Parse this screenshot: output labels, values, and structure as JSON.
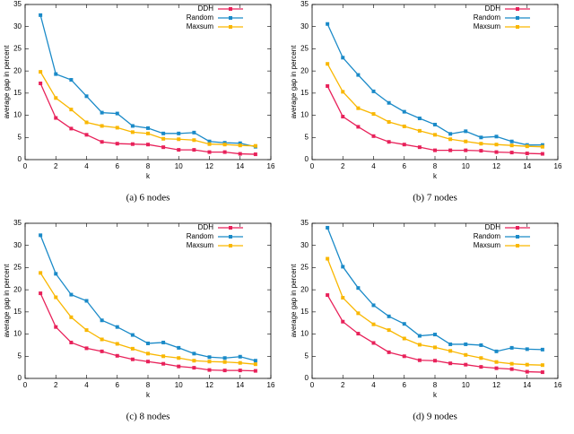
{
  "chart_data": [
    {
      "type": "line",
      "caption": "(a) 6 nodes",
      "xlabel": "k",
      "ylabel": "average gap in percent",
      "x": [
        1,
        2,
        3,
        4,
        5,
        6,
        7,
        8,
        9,
        10,
        11,
        12,
        13,
        14,
        15
      ],
      "xlim": [
        0,
        16
      ],
      "xticks": [
        0,
        2,
        4,
        6,
        8,
        10,
        12,
        14,
        16
      ],
      "ylim": [
        0,
        35
      ],
      "yticks": [
        0,
        5,
        10,
        15,
        20,
        25,
        30,
        35
      ],
      "legend": "upper right",
      "series": [
        {
          "name": "DDH",
          "color": "#e8215a",
          "values": [
            17.2,
            9.4,
            7.0,
            5.6,
            4.0,
            3.6,
            3.5,
            3.4,
            2.8,
            2.2,
            2.2,
            1.7,
            1.7,
            1.3,
            1.2
          ]
        },
        {
          "name": "Random",
          "color": "#1a8ac8",
          "values": [
            32.6,
            19.3,
            18.0,
            14.3,
            10.6,
            10.4,
            7.6,
            7.1,
            5.9,
            5.9,
            6.1,
            4.1,
            3.8,
            3.7,
            2.9
          ]
        },
        {
          "name": "Maxsum",
          "color": "#f9b700",
          "values": [
            19.8,
            13.9,
            11.3,
            8.4,
            7.6,
            7.2,
            6.2,
            5.9,
            4.7,
            4.6,
            4.4,
            3.5,
            3.4,
            3.2,
            3.1
          ]
        }
      ]
    },
    {
      "type": "line",
      "caption": "(b) 7 nodes",
      "xlabel": "k",
      "ylabel": "average gap in percent",
      "x": [
        1,
        2,
        3,
        4,
        5,
        6,
        7,
        8,
        9,
        10,
        11,
        12,
        13,
        14,
        15
      ],
      "xlim": [
        0,
        16
      ],
      "xticks": [
        0,
        2,
        4,
        6,
        8,
        10,
        12,
        14,
        16
      ],
      "ylim": [
        0,
        35
      ],
      "yticks": [
        0,
        5,
        10,
        15,
        20,
        25,
        30,
        35
      ],
      "legend": "upper right",
      "series": [
        {
          "name": "DDH",
          "color": "#e8215a",
          "values": [
            16.6,
            9.7,
            7.4,
            5.3,
            4.0,
            3.4,
            2.8,
            2.1,
            2.1,
            2.1,
            2.0,
            1.7,
            1.6,
            1.4,
            1.3
          ]
        },
        {
          "name": "Random",
          "color": "#1a8ac8",
          "values": [
            30.6,
            23.0,
            19.1,
            15.4,
            12.8,
            10.8,
            9.3,
            7.9,
            5.8,
            6.4,
            5.0,
            5.2,
            4.1,
            3.3,
            3.3
          ]
        },
        {
          "name": "Maxsum",
          "color": "#f9b700",
          "values": [
            21.6,
            15.3,
            11.6,
            10.3,
            8.5,
            7.5,
            6.5,
            5.6,
            4.6,
            4.1,
            3.6,
            3.4,
            3.2,
            3.0,
            2.9
          ]
        }
      ]
    },
    {
      "type": "line",
      "caption": "(c) 8 nodes",
      "xlabel": "k",
      "ylabel": "average gap in percent",
      "x": [
        1,
        2,
        3,
        4,
        5,
        6,
        7,
        8,
        9,
        10,
        11,
        12,
        13,
        14,
        15
      ],
      "xlim": [
        0,
        16
      ],
      "xticks": [
        0,
        2,
        4,
        6,
        8,
        10,
        12,
        14,
        16
      ],
      "ylim": [
        0,
        35
      ],
      "yticks": [
        0,
        5,
        10,
        15,
        20,
        25,
        30,
        35
      ],
      "legend": "upper right",
      "series": [
        {
          "name": "DDH",
          "color": "#e8215a",
          "values": [
            19.2,
            11.6,
            8.1,
            6.8,
            6.1,
            5.1,
            4.3,
            3.8,
            3.3,
            2.7,
            2.4,
            1.9,
            1.8,
            1.8,
            1.7
          ]
        },
        {
          "name": "Random",
          "color": "#1a8ac8",
          "values": [
            32.3,
            23.6,
            18.9,
            17.5,
            13.1,
            11.6,
            9.8,
            7.9,
            8.1,
            6.9,
            5.6,
            4.8,
            4.6,
            4.9,
            4.0
          ]
        },
        {
          "name": "Maxsum",
          "color": "#f9b700",
          "values": [
            23.8,
            18.3,
            13.8,
            10.9,
            8.8,
            7.8,
            6.7,
            5.6,
            5.0,
            4.6,
            4.0,
            3.8,
            3.7,
            3.5,
            3.2
          ]
        }
      ]
    },
    {
      "type": "line",
      "caption": "(d) 9 nodes",
      "xlabel": "k",
      "ylabel": "average gap in percent",
      "x": [
        1,
        2,
        3,
        4,
        5,
        6,
        7,
        8,
        9,
        10,
        11,
        12,
        13,
        14,
        15
      ],
      "xlim": [
        0,
        16
      ],
      "xticks": [
        0,
        2,
        4,
        6,
        8,
        10,
        12,
        14,
        16
      ],
      "ylim": [
        0,
        35
      ],
      "yticks": [
        0,
        5,
        10,
        15,
        20,
        25,
        30,
        35
      ],
      "legend": "upper right",
      "series": [
        {
          "name": "DDH",
          "color": "#e8215a",
          "values": [
            18.8,
            12.8,
            10.1,
            8.0,
            5.9,
            5.0,
            4.1,
            4.0,
            3.4,
            3.1,
            2.6,
            2.3,
            2.1,
            1.5,
            1.4
          ]
        },
        {
          "name": "Random",
          "color": "#1a8ac8",
          "values": [
            34.0,
            25.2,
            20.4,
            16.5,
            14.0,
            12.3,
            9.6,
            9.9,
            7.7,
            7.7,
            7.5,
            6.1,
            6.9,
            6.6,
            6.5
          ]
        },
        {
          "name": "Maxsum",
          "color": "#f9b700",
          "values": [
            27.0,
            18.2,
            14.7,
            12.2,
            10.9,
            9.0,
            7.6,
            7.0,
            6.2,
            5.3,
            4.6,
            3.7,
            3.3,
            3.1,
            3.0
          ]
        }
      ]
    }
  ]
}
